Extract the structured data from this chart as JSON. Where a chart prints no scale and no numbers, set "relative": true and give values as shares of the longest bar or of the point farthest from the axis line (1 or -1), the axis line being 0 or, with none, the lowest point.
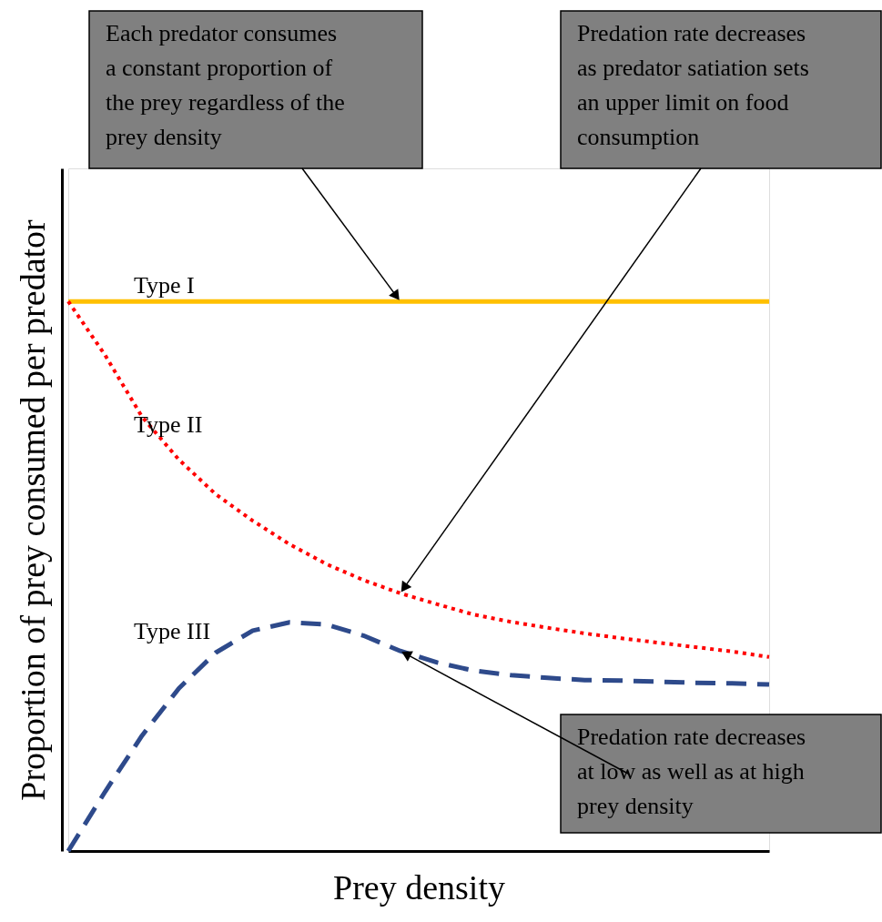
{
  "chart_data": {
    "type": "line",
    "relative": true,
    "xlabel": "Prey density",
    "ylabel": "Proportion of prey consumed per predator",
    "categories": [
      null,
      null,
      null,
      null,
      null,
      null,
      null,
      null,
      null,
      null,
      null,
      null,
      null,
      null,
      null,
      null,
      null,
      null,
      null,
      null
    ],
    "series": [
      {
        "name": "Type I",
        "color": "#ffc000",
        "line_style": "solid",
        "values": [
          1,
          1,
          1,
          1,
          1,
          1,
          1,
          1,
          1,
          1,
          1,
          1,
          1,
          1,
          1,
          1,
          1,
          1,
          1,
          1
        ]
      },
      {
        "name": "Type II",
        "color": "#ff0000",
        "line_style": "dotted",
        "values": [
          1,
          0.902,
          0.79,
          0.712,
          0.649,
          0.601,
          0.558,
          0.522,
          0.493,
          0.469,
          0.449,
          0.43,
          0.417,
          0.406,
          0.396,
          0.387,
          0.379,
          0.371,
          0.363,
          0.353
        ]
      },
      {
        "name": "Type III",
        "color": "#2e4a8b",
        "line_style": "dashed",
        "values": [
          0,
          0.108,
          0.21,
          0.296,
          0.361,
          0.401,
          0.416,
          0.412,
          0.392,
          0.364,
          0.343,
          0.328,
          0.32,
          0.315,
          0.311,
          0.31,
          0.308,
          0.306,
          0.305,
          0.303
        ]
      }
    ],
    "annotations": [
      "Each predator consumes\na constant proportion of\nthe prey regardless of the\nprey density",
      "Predation rate decreases\nas predator satiation sets\nan upper limit on food\nconsumption",
      "Predation rate decreases\nat low as well as at high\nprey density"
    ]
  }
}
